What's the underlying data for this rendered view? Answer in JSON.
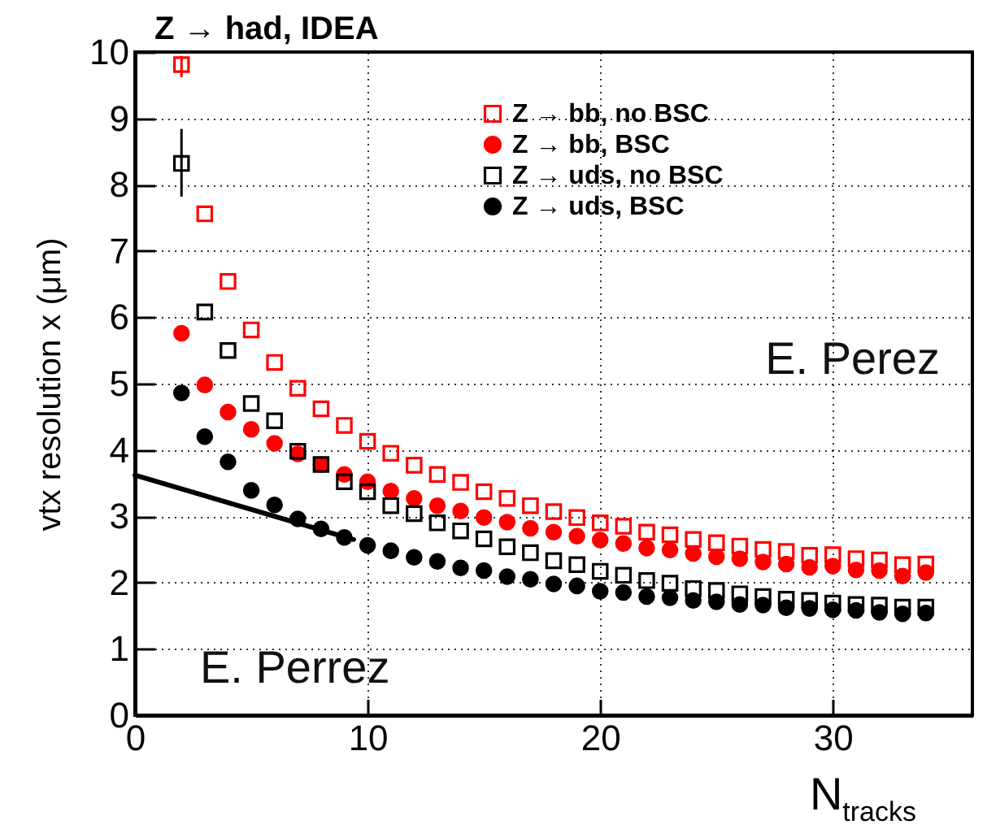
{
  "chart_data": {
    "type": "scatter",
    "title": "Z → had, IDEA",
    "xlabel": "N$_{tracks}$",
    "ylabel": "vtx resolution x (μm)",
    "xlim": [
      0,
      36
    ],
    "ylim": [
      0,
      10
    ],
    "xticks": [
      0,
      10,
      20,
      30
    ],
    "yticks": [
      0,
      1,
      2,
      3,
      4,
      5,
      6,
      7,
      8,
      9,
      10
    ],
    "grid": true,
    "legend": "top right",
    "annotations": [
      "E. Perez",
      "E. Perrez"
    ],
    "x": [
      2,
      3,
      4,
      5,
      6,
      7,
      8,
      9,
      10,
      11,
      12,
      13,
      14,
      15,
      16,
      17,
      18,
      19,
      20,
      21,
      22,
      23,
      24,
      25,
      26,
      27,
      28,
      29,
      30,
      31,
      32,
      33,
      34
    ],
    "series": [
      {
        "name": "Z → bb, no BSC",
        "color": "#ff0000",
        "marker": "square",
        "values": [
          9.81,
          7.56,
          6.54,
          5.81,
          5.32,
          4.93,
          4.62,
          4.37,
          4.13,
          3.95,
          3.77,
          3.63,
          3.51,
          3.37,
          3.27,
          3.16,
          3.07,
          2.98,
          2.9,
          2.85,
          2.76,
          2.72,
          2.65,
          2.6,
          2.55,
          2.5,
          2.47,
          2.41,
          2.42,
          2.36,
          2.34,
          2.27,
          2.28
        ],
        "errors": [
          [
            9.62,
            9.94
          ],
          null,
          null,
          null,
          null,
          null,
          null,
          null,
          null,
          null,
          null,
          null,
          null,
          null,
          null,
          null,
          null,
          null,
          null,
          null,
          null,
          null,
          null,
          null,
          null,
          null,
          null,
          null,
          null,
          null,
          null,
          null,
          null
        ]
      },
      {
        "name": "Z → bb, BSC",
        "color": "#ff0000",
        "marker": "circle",
        "values": [
          5.76,
          4.98,
          4.57,
          4.31,
          4.1,
          3.94,
          3.78,
          3.63,
          3.52,
          3.38,
          3.27,
          3.16,
          3.08,
          2.98,
          2.91,
          2.82,
          2.76,
          2.7,
          2.64,
          2.59,
          2.52,
          2.49,
          2.44,
          2.39,
          2.36,
          2.31,
          2.28,
          2.23,
          2.25,
          2.19,
          2.18,
          2.1,
          2.15
        ]
      },
      {
        "name": "Z → uds, no BSC",
        "color": "#000000",
        "marker": "square",
        "values": [
          8.32,
          6.08,
          5.5,
          4.7,
          4.44,
          3.98,
          3.78,
          3.52,
          3.37,
          3.16,
          3.04,
          2.9,
          2.78,
          2.66,
          2.54,
          2.45,
          2.33,
          2.27,
          2.17,
          2.11,
          2.03,
          1.99,
          1.91,
          1.88,
          1.83,
          1.79,
          1.75,
          1.73,
          1.69,
          1.67,
          1.66,
          1.63,
          1.63
        ],
        "errors": [
          [
            7.82,
            8.84
          ],
          null,
          null,
          null,
          null,
          null,
          null,
          null,
          null,
          null,
          null,
          null,
          null,
          null,
          null,
          null,
          null,
          null,
          null,
          null,
          null,
          null,
          null,
          null,
          null,
          null,
          null,
          null,
          null,
          null,
          null,
          null,
          null
        ]
      },
      {
        "name": "Z → uds, BSC",
        "color": "#000000",
        "marker": "circle",
        "values": [
          4.86,
          4.2,
          3.82,
          3.39,
          3.17,
          2.96,
          2.81,
          2.68,
          2.56,
          2.48,
          2.38,
          2.32,
          2.22,
          2.18,
          2.09,
          2.05,
          1.98,
          1.95,
          1.87,
          1.85,
          1.79,
          1.77,
          1.73,
          1.71,
          1.67,
          1.66,
          1.62,
          1.61,
          1.59,
          1.58,
          1.55,
          1.53,
          1.54
        ]
      },
      {
        "type": "line",
        "color": "#000000",
        "line_style": "solid",
        "marker": "none",
        "x": [
          0,
          9.4
        ],
        "values": [
          3.62,
          2.65
        ]
      }
    ]
  }
}
